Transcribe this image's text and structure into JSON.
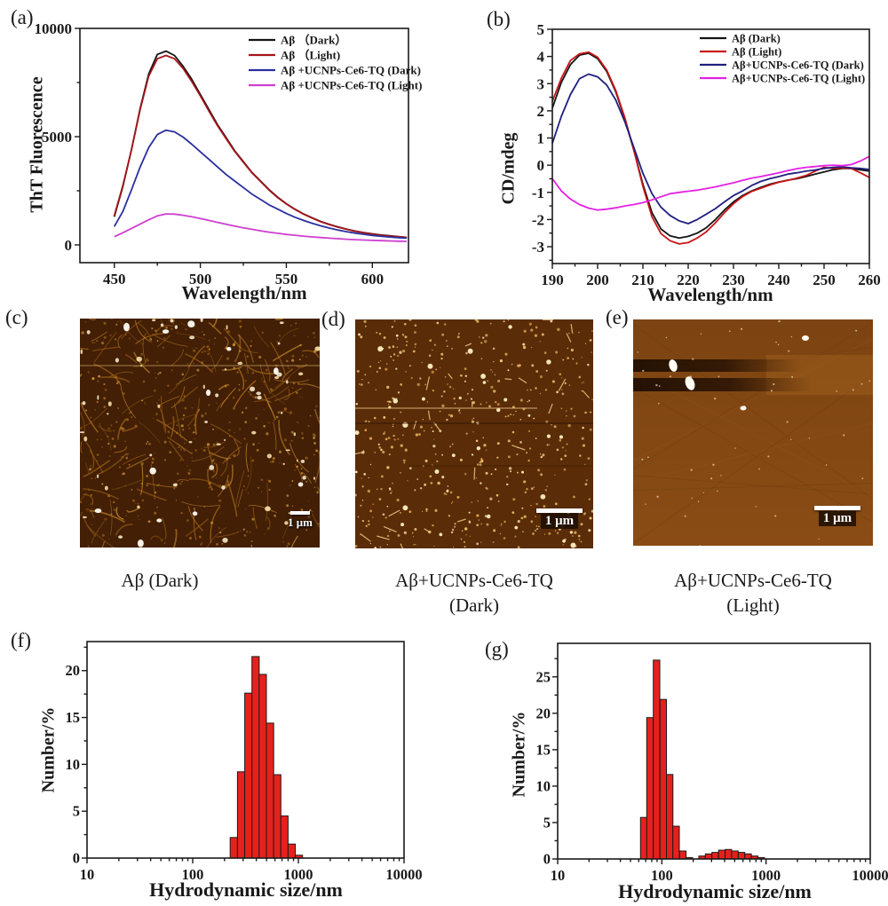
{
  "panel_labels": {
    "a": "(a)",
    "b": "(b)",
    "c": "(c)",
    "d": "(d)",
    "e": "(e)",
    "f": "(f)",
    "g": "(g)"
  },
  "afm": {
    "c": {
      "caption_line1": "Aβ (Dark)",
      "caption_line2": "",
      "scale_bar": "1 μm"
    },
    "d": {
      "caption_line1": "Aβ+UCNPs-Ce6-TQ",
      "caption_line2": "(Dark)",
      "scale_bar": "1 μm"
    },
    "e": {
      "caption_line1": "Aβ+UCNPs-Ce6-TQ",
      "caption_line2": "(Light)",
      "scale_bar": "1 μm"
    }
  },
  "colors": {
    "axis": "#1a1a1a",
    "afm_background_c": "#421f05",
    "afm_background_d": "#5a2c08",
    "afm_background_e": "#7c4412",
    "hist_fill": "#e6211c"
  },
  "chart_data": [
    {
      "id": "a",
      "type": "line",
      "title": "",
      "xlabel": "Wavelength/nm",
      "ylabel": "ThT Fluorescence",
      "xlim": [
        430,
        621
      ],
      "ylim": [
        -820,
        10000
      ],
      "x_major": [
        450,
        500,
        550,
        600
      ],
      "x_minor": [
        475,
        525,
        575
      ],
      "y_major": [
        0,
        5000,
        10000
      ],
      "y_minor": [
        2500,
        7500
      ],
      "legend_position": "top-right",
      "grid": false,
      "x": [
        450,
        455,
        460,
        465,
        470,
        475,
        480,
        485,
        490,
        495,
        500,
        505,
        510,
        515,
        520,
        525,
        530,
        535,
        540,
        545,
        550,
        555,
        560,
        565,
        570,
        575,
        580,
        585,
        590,
        595,
        600,
        605,
        610,
        615,
        620
      ],
      "series": [
        {
          "name": "Aβ （Dark）",
          "color": "#141414",
          "values": [
            1300,
            2700,
            4400,
            6300,
            7900,
            8800,
            8950,
            8750,
            8250,
            7650,
            6950,
            6250,
            5550,
            4950,
            4350,
            3850,
            3350,
            2950,
            2550,
            2200,
            1900,
            1650,
            1430,
            1250,
            1080,
            950,
            830,
            730,
            640,
            570,
            510,
            460,
            420,
            380,
            350
          ]
        },
        {
          "name": "Aβ （Light)",
          "color": "#a6151a",
          "values": [
            1350,
            2750,
            4400,
            6250,
            7800,
            8600,
            8750,
            8600,
            8150,
            7550,
            6880,
            6180,
            5500,
            4900,
            4320,
            3820,
            3330,
            2930,
            2530,
            2180,
            1890,
            1640,
            1420,
            1240,
            1070,
            940,
            820,
            720,
            630,
            560,
            500,
            450,
            410,
            375,
            345
          ]
        },
        {
          "name": "Aβ +UCNPs-Ce6-TQ (Dark)",
          "color": "#2b2f9e",
          "values": [
            850,
            1550,
            2550,
            3600,
            4500,
            5100,
            5300,
            5220,
            4980,
            4650,
            4300,
            3950,
            3600,
            3250,
            2950,
            2650,
            2350,
            2100,
            1850,
            1650,
            1450,
            1280,
            1130,
            1000,
            880,
            780,
            690,
            610,
            545,
            490,
            440,
            400,
            365,
            335,
            310
          ]
        },
        {
          "name": "Aβ +UCNPs-Ce6-TQ (Light)",
          "color": "#cf3fd0",
          "values": [
            380,
            560,
            760,
            960,
            1160,
            1340,
            1430,
            1420,
            1370,
            1300,
            1220,
            1130,
            1040,
            950,
            870,
            790,
            720,
            650,
            590,
            535,
            485,
            445,
            405,
            370,
            340,
            310,
            285,
            262,
            242,
            224,
            208,
            195,
            183,
            172,
            163
          ]
        }
      ]
    },
    {
      "id": "b",
      "type": "line",
      "title": "",
      "xlabel": "Wavelength/nm",
      "ylabel": "CD/mdeg",
      "xlim": [
        190,
        260
      ],
      "ylim": [
        -3.62,
        5
      ],
      "x_major": [
        190,
        200,
        210,
        220,
        230,
        240,
        250,
        260
      ],
      "x_minor": [
        195,
        205,
        215,
        225,
        235,
        245,
        255
      ],
      "y_major": [
        -3,
        -2,
        -1,
        0,
        1,
        2,
        3,
        4,
        5
      ],
      "y_minor": [
        -3.5,
        -2.5,
        -1.5,
        -0.5,
        0.5,
        1.5,
        2.5,
        3.5,
        4.5
      ],
      "legend_position": "top-right",
      "grid": false,
      "x": [
        190,
        192,
        194,
        196,
        198,
        200,
        202,
        204,
        206,
        208,
        210,
        212,
        214,
        216,
        218,
        220,
        222,
        224,
        226,
        228,
        230,
        232,
        234,
        236,
        238,
        240,
        242,
        244,
        246,
        248,
        250,
        252,
        254,
        256,
        258,
        260
      ],
      "series": [
        {
          "name": "Aβ (Dark)",
          "color": "#141414",
          "values": [
            2.1,
            3.05,
            3.7,
            4.05,
            4.12,
            3.92,
            3.45,
            2.7,
            1.7,
            0.55,
            -0.7,
            -1.75,
            -2.35,
            -2.6,
            -2.68,
            -2.62,
            -2.5,
            -2.3,
            -2.0,
            -1.65,
            -1.35,
            -1.12,
            -0.95,
            -0.82,
            -0.7,
            -0.62,
            -0.55,
            -0.5,
            -0.42,
            -0.33,
            -0.25,
            -0.17,
            -0.12,
            -0.12,
            -0.17,
            -0.22
          ]
        },
        {
          "name": "Aβ (Light)",
          "color": "#c81418",
          "values": [
            2.35,
            3.2,
            3.85,
            4.1,
            4.16,
            3.97,
            3.5,
            2.75,
            1.75,
            0.55,
            -0.78,
            -1.9,
            -2.52,
            -2.78,
            -2.9,
            -2.85,
            -2.68,
            -2.45,
            -2.12,
            -1.75,
            -1.42,
            -1.15,
            -0.97,
            -0.85,
            -0.73,
            -0.63,
            -0.56,
            -0.48,
            -0.38,
            -0.22,
            -0.08,
            -0.12,
            -0.1,
            -0.12,
            -0.28,
            -0.45
          ]
        },
        {
          "name": "Aβ+UCNPs-Ce6-TQ (Dark)",
          "color": "#20207e",
          "values": [
            0.8,
            1.8,
            2.6,
            3.18,
            3.35,
            3.25,
            2.95,
            2.4,
            1.6,
            0.65,
            -0.3,
            -1.05,
            -1.55,
            -1.85,
            -2.05,
            -2.15,
            -2.0,
            -1.8,
            -1.6,
            -1.35,
            -1.12,
            -0.95,
            -0.75,
            -0.6,
            -0.5,
            -0.42,
            -0.33,
            -0.28,
            -0.22,
            -0.18,
            -0.12,
            -0.08,
            -0.06,
            -0.1,
            -0.12,
            -0.16
          ]
        },
        {
          "name": "Aβ+UCNPs-Ce6-TQ (Light)",
          "color": "#e321e3",
          "values": [
            -0.5,
            -0.95,
            -1.25,
            -1.45,
            -1.58,
            -1.65,
            -1.62,
            -1.57,
            -1.5,
            -1.45,
            -1.38,
            -1.28,
            -1.16,
            -1.05,
            -1.0,
            -0.96,
            -0.92,
            -0.86,
            -0.8,
            -0.72,
            -0.65,
            -0.56,
            -0.48,
            -0.42,
            -0.35,
            -0.28,
            -0.2,
            -0.13,
            -0.08,
            -0.05,
            -0.02,
            0.0,
            -0.02,
            0.02,
            0.15,
            0.32
          ]
        }
      ]
    },
    {
      "id": "f",
      "type": "bar",
      "title": "",
      "xlabel": "Hydrodynamic size/nm",
      "ylabel": "Number/%",
      "xscale": "log",
      "xlim": [
        10,
        10000
      ],
      "ylim": [
        0,
        23.1
      ],
      "x_major": [
        10,
        100,
        1000,
        10000
      ],
      "y_major": [
        0,
        5,
        10,
        15,
        20
      ],
      "y_minor": [
        2.5,
        7.5,
        12.5,
        17.5,
        22.5
      ],
      "bar_color": "#e6211c",
      "log_step": 0.0686,
      "grid": false,
      "bins": {
        "sizes": [
          245,
          287,
          336,
          393,
          460,
          539,
          631,
          738,
          864,
          1011
        ],
        "values": [
          2.2,
          9.2,
          17.6,
          21.5,
          19.6,
          14.4,
          8.9,
          4.5,
          1.5,
          0.3
        ]
      }
    },
    {
      "id": "g",
      "type": "bar",
      "title": "",
      "xlabel": "Hydrodynamic size/nm",
      "ylabel": "Number/%",
      "xscale": "log",
      "xlim": [
        10,
        10000
      ],
      "ylim": [
        0,
        29.6
      ],
      "x_major": [
        10,
        100,
        1000,
        10000
      ],
      "y_major": [
        0,
        5,
        10,
        15,
        20,
        25
      ],
      "y_minor": [
        2.5,
        7.5,
        12.5,
        17.5,
        22.5,
        27.5
      ],
      "bar_color": "#e6211c",
      "log_step": 0.0625,
      "grid": false,
      "bins": {
        "sizes": [
          67,
          77,
          89,
          103,
          119,
          137,
          159,
          184,
          243,
          281,
          325,
          376,
          435,
          503,
          582,
          673,
          778,
          900
        ],
        "values": [
          5.7,
          19.4,
          27.3,
          21.9,
          11.6,
          4.5,
          1.1,
          0.2,
          0.4,
          0.7,
          0.9,
          1.2,
          1.3,
          1.1,
          0.9,
          0.7,
          0.4,
          0.2
        ]
      }
    }
  ]
}
